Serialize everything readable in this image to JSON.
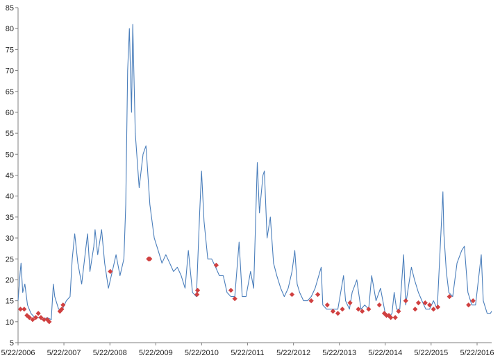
{
  "chart_data": {
    "type": "line",
    "title": "",
    "xlabel": "",
    "ylabel": "",
    "grid": false,
    "legend": "none",
    "ylim": [
      5,
      85
    ],
    "yticks": [
      5,
      10,
      15,
      20,
      25,
      30,
      35,
      40,
      45,
      50,
      55,
      60,
      65,
      70,
      75,
      80,
      85
    ],
    "xlim": [
      "2006-05-22",
      "2016-09-15"
    ],
    "xticks": [
      {
        "date": "2006-05-22",
        "label": "5/22/2006"
      },
      {
        "date": "2007-05-22",
        "label": "5/22/2007"
      },
      {
        "date": "2008-05-22",
        "label": "5/22/2008"
      },
      {
        "date": "2009-05-22",
        "label": "5/22/2009"
      },
      {
        "date": "2010-05-22",
        "label": "5/22/2010"
      },
      {
        "date": "2011-05-22",
        "label": "5/22/2011"
      },
      {
        "date": "2012-05-22",
        "label": "5/22/2012"
      },
      {
        "date": "2013-05-22",
        "label": "5/22/2013"
      },
      {
        "date": "2014-05-22",
        "label": "5/22/2014"
      },
      {
        "date": "2015-05-22",
        "label": "5/22/2015"
      },
      {
        "date": "2016-05-22",
        "label": "5/22/2016"
      }
    ],
    "series": [
      {
        "color": "#4a7ebb",
        "points": [
          [
            "2006-05-22",
            15
          ],
          [
            "2006-06-08",
            22
          ],
          [
            "2006-06-15",
            24
          ],
          [
            "2006-06-28",
            17
          ],
          [
            "2006-07-15",
            19
          ],
          [
            "2006-08-05",
            14
          ],
          [
            "2006-09-01",
            12
          ],
          [
            "2006-10-01",
            11
          ],
          [
            "2006-11-01",
            11
          ],
          [
            "2006-12-01",
            10.5
          ],
          [
            "2007-01-10",
            11
          ],
          [
            "2007-02-10",
            10.5
          ],
          [
            "2007-02-27",
            19
          ],
          [
            "2007-03-10",
            16
          ],
          [
            "2007-04-10",
            13
          ],
          [
            "2007-05-10",
            13
          ],
          [
            "2007-06-10",
            15
          ],
          [
            "2007-07-10",
            16
          ],
          [
            "2007-07-27",
            25
          ],
          [
            "2007-08-16",
            31
          ],
          [
            "2007-09-10",
            24
          ],
          [
            "2007-10-10",
            19
          ],
          [
            "2007-11-10",
            27
          ],
          [
            "2007-11-26",
            31
          ],
          [
            "2007-12-15",
            22
          ],
          [
            "2008-01-15",
            28
          ],
          [
            "2008-01-25",
            32
          ],
          [
            "2008-02-15",
            26
          ],
          [
            "2008-03-17",
            32
          ],
          [
            "2008-04-10",
            24
          ],
          [
            "2008-05-10",
            18
          ],
          [
            "2008-06-10",
            22
          ],
          [
            "2008-07-10",
            26
          ],
          [
            "2008-08-10",
            21
          ],
          [
            "2008-09-10",
            25
          ],
          [
            "2008-09-25",
            38
          ],
          [
            "2008-10-10",
            70
          ],
          [
            "2008-10-24",
            80
          ],
          [
            "2008-11-10",
            60
          ],
          [
            "2008-11-20",
            81
          ],
          [
            "2008-12-10",
            55
          ],
          [
            "2009-01-10",
            42
          ],
          [
            "2009-02-10",
            50
          ],
          [
            "2009-03-05",
            52
          ],
          [
            "2009-04-05",
            38
          ],
          [
            "2009-05-10",
            30
          ],
          [
            "2009-06-10",
            27
          ],
          [
            "2009-07-10",
            24
          ],
          [
            "2009-08-10",
            26
          ],
          [
            "2009-09-10",
            24
          ],
          [
            "2009-10-10",
            22
          ],
          [
            "2009-11-10",
            23
          ],
          [
            "2009-12-10",
            21
          ],
          [
            "2010-01-10",
            18
          ],
          [
            "2010-02-05",
            27
          ],
          [
            "2010-03-10",
            17
          ],
          [
            "2010-04-10",
            16
          ],
          [
            "2010-05-06",
            36
          ],
          [
            "2010-05-21",
            46
          ],
          [
            "2010-06-10",
            34
          ],
          [
            "2010-07-10",
            25
          ],
          [
            "2010-08-10",
            25
          ],
          [
            "2010-09-10",
            23
          ],
          [
            "2010-10-10",
            21
          ],
          [
            "2010-11-10",
            21
          ],
          [
            "2010-12-10",
            17
          ],
          [
            "2011-01-10",
            16
          ],
          [
            "2011-02-10",
            16
          ],
          [
            "2011-03-16",
            29
          ],
          [
            "2011-04-10",
            16
          ],
          [
            "2011-05-10",
            16
          ],
          [
            "2011-06-15",
            22
          ],
          [
            "2011-07-10",
            18
          ],
          [
            "2011-08-08",
            48
          ],
          [
            "2011-08-25",
            36
          ],
          [
            "2011-09-22",
            45
          ],
          [
            "2011-10-03",
            46
          ],
          [
            "2011-10-25",
            30
          ],
          [
            "2011-11-20",
            35
          ],
          [
            "2011-12-15",
            24
          ],
          [
            "2012-01-10",
            21
          ],
          [
            "2012-02-10",
            18
          ],
          [
            "2012-03-10",
            16
          ],
          [
            "2012-04-10",
            18
          ],
          [
            "2012-05-10",
            22
          ],
          [
            "2012-06-01",
            27
          ],
          [
            "2012-06-20",
            19
          ],
          [
            "2012-07-10",
            17
          ],
          [
            "2012-08-10",
            15
          ],
          [
            "2012-09-10",
            15
          ],
          [
            "2012-10-10",
            16
          ],
          [
            "2012-11-10",
            18
          ],
          [
            "2012-12-28",
            23
          ],
          [
            "2013-01-10",
            14
          ],
          [
            "2013-02-10",
            13
          ],
          [
            "2013-03-10",
            13
          ],
          [
            "2013-04-10",
            13
          ],
          [
            "2013-05-10",
            13
          ],
          [
            "2013-06-24",
            21
          ],
          [
            "2013-07-10",
            15
          ],
          [
            "2013-08-10",
            13
          ],
          [
            "2013-09-01",
            17
          ],
          [
            "2013-10-08",
            20
          ],
          [
            "2013-11-10",
            13
          ],
          [
            "2013-12-10",
            14
          ],
          [
            "2014-01-10",
            13
          ],
          [
            "2014-02-03",
            21
          ],
          [
            "2014-03-10",
            15
          ],
          [
            "2014-04-14",
            18
          ],
          [
            "2014-05-22",
            12
          ],
          [
            "2014-06-20",
            11
          ],
          [
            "2014-07-15",
            12
          ],
          [
            "2014-08-01",
            17
          ],
          [
            "2014-08-20",
            13
          ],
          [
            "2014-09-15",
            13
          ],
          [
            "2014-10-15",
            26
          ],
          [
            "2014-11-01",
            14
          ],
          [
            "2014-12-16",
            23
          ],
          [
            "2015-01-10",
            20
          ],
          [
            "2015-02-10",
            17
          ],
          [
            "2015-03-10",
            15
          ],
          [
            "2015-04-10",
            13
          ],
          [
            "2015-05-10",
            13
          ],
          [
            "2015-06-10",
            15
          ],
          [
            "2015-07-10",
            13
          ],
          [
            "2015-08-24",
            41
          ],
          [
            "2015-09-01",
            31
          ],
          [
            "2015-09-20",
            22
          ],
          [
            "2015-10-10",
            17
          ],
          [
            "2015-11-10",
            16
          ],
          [
            "2015-12-14",
            24
          ],
          [
            "2016-01-20",
            27
          ],
          [
            "2016-02-11",
            28
          ],
          [
            "2016-03-10",
            17
          ],
          [
            "2016-04-10",
            14
          ],
          [
            "2016-05-10",
            14
          ],
          [
            "2016-06-24",
            26
          ],
          [
            "2016-07-10",
            15
          ],
          [
            "2016-08-10",
            12
          ],
          [
            "2016-09-05",
            12
          ],
          [
            "2016-09-15",
            12.5
          ]
        ]
      },
      {
        "color": "#d04040",
        "marker": "diamond",
        "points": [
          [
            "2006-06-10",
            13
          ],
          [
            "2006-07-10",
            13
          ],
          [
            "2006-08-01",
            11.5
          ],
          [
            "2006-08-20",
            11
          ],
          [
            "2006-09-15",
            10.5
          ],
          [
            "2006-10-10",
            11
          ],
          [
            "2006-10-30",
            12
          ],
          [
            "2006-11-20",
            11
          ],
          [
            "2006-12-15",
            10.5
          ],
          [
            "2007-01-10",
            10.5
          ],
          [
            "2007-01-25",
            10
          ],
          [
            "2007-04-20",
            12.5
          ],
          [
            "2007-05-05",
            13
          ],
          [
            "2007-05-15",
            14
          ],
          [
            "2008-05-25",
            22
          ],
          [
            "2009-03-25",
            25
          ],
          [
            "2009-04-05",
            25
          ],
          [
            "2010-04-15",
            16.5
          ],
          [
            "2010-04-20",
            17.5
          ],
          [
            "2010-09-15",
            23.5
          ],
          [
            "2011-01-10",
            17.5
          ],
          [
            "2011-02-10",
            15.5
          ],
          [
            "2012-05-10",
            16.5
          ],
          [
            "2012-10-10",
            15
          ],
          [
            "2012-12-01",
            16.5
          ],
          [
            "2013-02-15",
            14
          ],
          [
            "2013-04-01",
            12.5
          ],
          [
            "2013-05-10",
            12
          ],
          [
            "2013-06-15",
            13
          ],
          [
            "2013-08-15",
            14.5
          ],
          [
            "2013-10-20",
            13
          ],
          [
            "2013-11-20",
            12.5
          ],
          [
            "2014-01-10",
            13
          ],
          [
            "2014-04-05",
            14
          ],
          [
            "2014-05-15",
            12
          ],
          [
            "2014-06-01",
            11.5
          ],
          [
            "2014-06-20",
            11.5
          ],
          [
            "2014-07-05",
            11
          ],
          [
            "2014-08-10",
            11
          ],
          [
            "2014-09-05",
            12.5
          ],
          [
            "2014-11-01",
            15
          ],
          [
            "2015-01-15",
            13
          ],
          [
            "2015-02-10",
            14.5
          ],
          [
            "2015-04-05",
            14.5
          ],
          [
            "2015-05-10",
            14
          ],
          [
            "2015-06-10",
            13
          ],
          [
            "2015-07-15",
            13.5
          ],
          [
            "2015-10-15",
            16
          ],
          [
            "2016-03-15",
            14
          ],
          [
            "2016-04-20",
            15
          ]
        ]
      }
    ]
  }
}
